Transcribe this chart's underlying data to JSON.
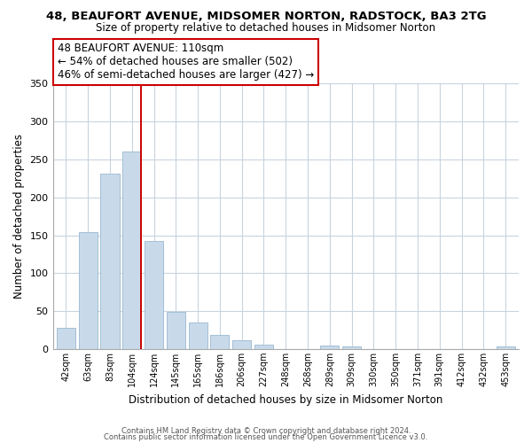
{
  "title": "48, BEAUFORT AVENUE, MIDSOMER NORTON, RADSTOCK, BA3 2TG",
  "subtitle": "Size of property relative to detached houses in Midsomer Norton",
  "xlabel": "Distribution of detached houses by size in Midsomer Norton",
  "ylabel": "Number of detached properties",
  "bar_color": "#c8daea",
  "bar_edge_color": "#9ab8d0",
  "vline_color": "#cc0000",
  "categories": [
    "42sqm",
    "63sqm",
    "83sqm",
    "104sqm",
    "124sqm",
    "145sqm",
    "165sqm",
    "186sqm",
    "206sqm",
    "227sqm",
    "248sqm",
    "268sqm",
    "289sqm",
    "309sqm",
    "330sqm",
    "350sqm",
    "371sqm",
    "391sqm",
    "412sqm",
    "432sqm",
    "453sqm"
  ],
  "values": [
    28,
    154,
    231,
    260,
    143,
    49,
    35,
    18,
    11,
    6,
    0,
    0,
    4,
    3,
    0,
    0,
    0,
    0,
    0,
    0,
    3
  ],
  "ylim": [
    0,
    350
  ],
  "yticks": [
    0,
    50,
    100,
    150,
    200,
    250,
    300,
    350
  ],
  "annotation_title": "48 BEAUFORT AVENUE: 110sqm",
  "annotation_line1": "← 54% of detached houses are smaller (502)",
  "annotation_line2": "46% of semi-detached houses are larger (427) →",
  "footnote1": "Contains HM Land Registry data © Crown copyright and database right 2024.",
  "footnote2": "Contains public sector information licensed under the Open Government Licence v3.0.",
  "background_color": "#ffffff",
  "grid_color": "#c8d4de"
}
